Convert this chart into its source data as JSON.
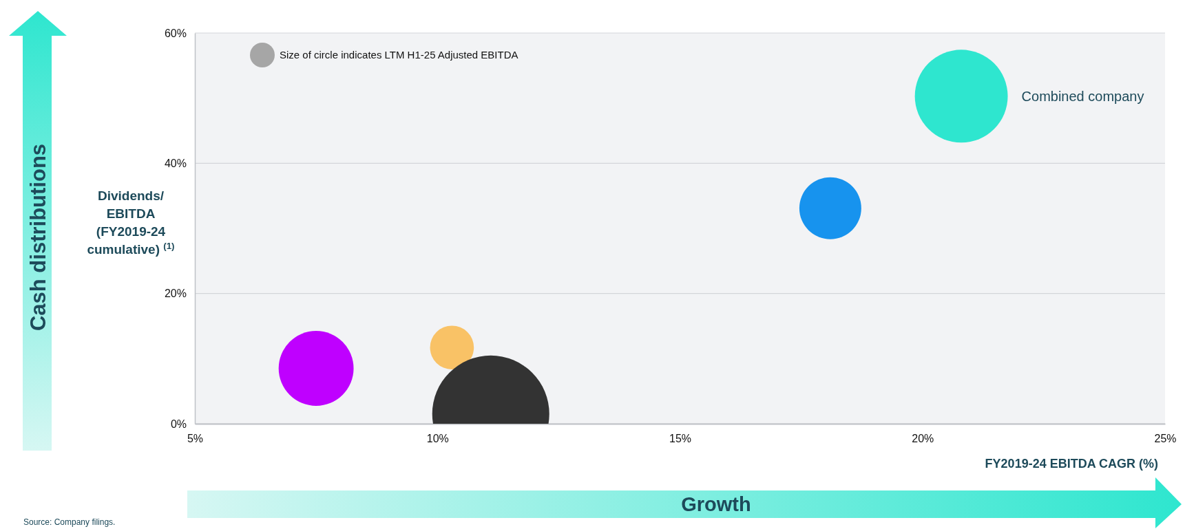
{
  "chart_data": {
    "type": "bubble",
    "xlabel": "FY2019-24 EBITDA CAGR (%)",
    "ylabel": "Dividends/ EBITDA (FY2019-24 cumulative) $^{(1)}$",
    "xlim": [
      5,
      25
    ],
    "xticks": [
      {
        "value": 5,
        "label": "5%"
      },
      {
        "value": 10,
        "label": "10%"
      },
      {
        "value": 15,
        "label": "15%"
      },
      {
        "value": 20,
        "label": "20%"
      },
      {
        "value": 25,
        "label": "25%"
      }
    ],
    "ylim": [
      0,
      60
    ],
    "yticks": [
      {
        "value": 0,
        "label": "0%"
      },
      {
        "value": 20,
        "label": "20%"
      },
      {
        "value": 40,
        "label": "40%"
      },
      {
        "value": 60,
        "label": "60%"
      }
    ],
    "grid": "y",
    "series": [
      {
        "name": "Combined company",
        "color": "#2ee6cf",
        "x": [
          20.8
        ],
        "values": [
          50.3
        ],
        "sizes": [
          0.63
        ]
      },
      {
        "color": "#1793ee",
        "x": [
          18.1
        ],
        "values": [
          33.1
        ],
        "sizes": [
          0.28
        ]
      },
      {
        "color": "#bf00ff",
        "x": [
          7.5
        ],
        "values": [
          8.5
        ],
        "sizes": [
          0.41
        ]
      },
      {
        "color": "#f9c266",
        "x": [
          10.3
        ],
        "values": [
          11.7
        ],
        "sizes": [
          0.14
        ]
      },
      {
        "color": "#333333",
        "x": [
          11.1
        ],
        "values": [
          1.5
        ],
        "sizes": [
          1
        ]
      }
    ],
    "annotations": [
      "Size of circle indicates LTM H1-25 Adjusted EBITDA",
      "Cash distributions",
      "Growth",
      "Source: Company filings."
    ]
  }
}
